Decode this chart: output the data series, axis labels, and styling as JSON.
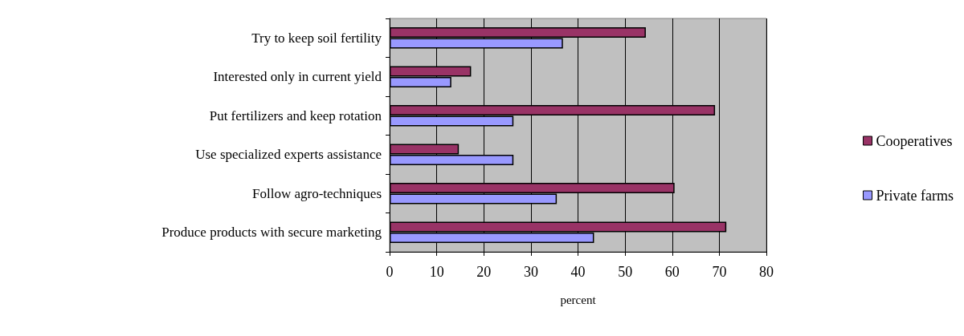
{
  "chart_data": {
    "type": "bar",
    "orientation": "horizontal",
    "xlabel": "percent",
    "categories": [
      "Try to keep soil fertility",
      "Interested only in current yield",
      "Put fertilizers and keep rotation",
      "Use specialized experts assistance",
      "Follow agro-techniques",
      "Produce products with secure marketing"
    ],
    "series": [
      {
        "name": "Cooperatives",
        "color": "#993366",
        "values": [
          54.4,
          17.3,
          69.1,
          14.7,
          60.5,
          71.5
        ]
      },
      {
        "name": "Private farms",
        "color": "#9999ff",
        "values": [
          36.8,
          13.1,
          26.3,
          26.3,
          35.5,
          43.4
        ]
      }
    ],
    "xlim": [
      0,
      80
    ],
    "xticks": [
      0,
      10,
      20,
      30,
      40,
      50,
      60,
      70,
      80
    ],
    "grid": "x",
    "legend": "right"
  }
}
